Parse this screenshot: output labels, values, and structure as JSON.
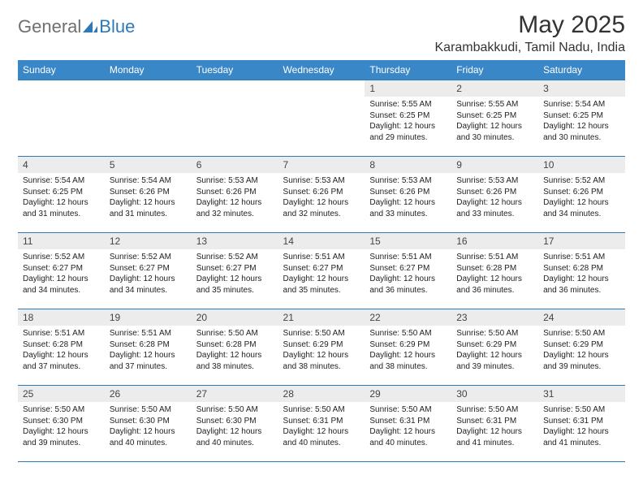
{
  "brand": {
    "general": "General",
    "blue": "Blue"
  },
  "title": "May 2025",
  "location": "Karambakkudi, Tamil Nadu, India",
  "colors": {
    "header_bg": "#3a87c7",
    "header_border": "#2f78b9",
    "daynum_bg": "#ececec",
    "text": "#222222"
  },
  "weekdays": [
    "Sunday",
    "Monday",
    "Tuesday",
    "Wednesday",
    "Thursday",
    "Friday",
    "Saturday"
  ],
  "weeks": [
    [
      {
        "n": "",
        "sr": "",
        "ss": "",
        "dl": ""
      },
      {
        "n": "",
        "sr": "",
        "ss": "",
        "dl": ""
      },
      {
        "n": "",
        "sr": "",
        "ss": "",
        "dl": ""
      },
      {
        "n": "",
        "sr": "",
        "ss": "",
        "dl": ""
      },
      {
        "n": "1",
        "sr": "Sunrise: 5:55 AM",
        "ss": "Sunset: 6:25 PM",
        "dl": "Daylight: 12 hours and 29 minutes."
      },
      {
        "n": "2",
        "sr": "Sunrise: 5:55 AM",
        "ss": "Sunset: 6:25 PM",
        "dl": "Daylight: 12 hours and 30 minutes."
      },
      {
        "n": "3",
        "sr": "Sunrise: 5:54 AM",
        "ss": "Sunset: 6:25 PM",
        "dl": "Daylight: 12 hours and 30 minutes."
      }
    ],
    [
      {
        "n": "4",
        "sr": "Sunrise: 5:54 AM",
        "ss": "Sunset: 6:25 PM",
        "dl": "Daylight: 12 hours and 31 minutes."
      },
      {
        "n": "5",
        "sr": "Sunrise: 5:54 AM",
        "ss": "Sunset: 6:26 PM",
        "dl": "Daylight: 12 hours and 31 minutes."
      },
      {
        "n": "6",
        "sr": "Sunrise: 5:53 AM",
        "ss": "Sunset: 6:26 PM",
        "dl": "Daylight: 12 hours and 32 minutes."
      },
      {
        "n": "7",
        "sr": "Sunrise: 5:53 AM",
        "ss": "Sunset: 6:26 PM",
        "dl": "Daylight: 12 hours and 32 minutes."
      },
      {
        "n": "8",
        "sr": "Sunrise: 5:53 AM",
        "ss": "Sunset: 6:26 PM",
        "dl": "Daylight: 12 hours and 33 minutes."
      },
      {
        "n": "9",
        "sr": "Sunrise: 5:53 AM",
        "ss": "Sunset: 6:26 PM",
        "dl": "Daylight: 12 hours and 33 minutes."
      },
      {
        "n": "10",
        "sr": "Sunrise: 5:52 AM",
        "ss": "Sunset: 6:26 PM",
        "dl": "Daylight: 12 hours and 34 minutes."
      }
    ],
    [
      {
        "n": "11",
        "sr": "Sunrise: 5:52 AM",
        "ss": "Sunset: 6:27 PM",
        "dl": "Daylight: 12 hours and 34 minutes."
      },
      {
        "n": "12",
        "sr": "Sunrise: 5:52 AM",
        "ss": "Sunset: 6:27 PM",
        "dl": "Daylight: 12 hours and 34 minutes."
      },
      {
        "n": "13",
        "sr": "Sunrise: 5:52 AM",
        "ss": "Sunset: 6:27 PM",
        "dl": "Daylight: 12 hours and 35 minutes."
      },
      {
        "n": "14",
        "sr": "Sunrise: 5:51 AM",
        "ss": "Sunset: 6:27 PM",
        "dl": "Daylight: 12 hours and 35 minutes."
      },
      {
        "n": "15",
        "sr": "Sunrise: 5:51 AM",
        "ss": "Sunset: 6:27 PM",
        "dl": "Daylight: 12 hours and 36 minutes."
      },
      {
        "n": "16",
        "sr": "Sunrise: 5:51 AM",
        "ss": "Sunset: 6:28 PM",
        "dl": "Daylight: 12 hours and 36 minutes."
      },
      {
        "n": "17",
        "sr": "Sunrise: 5:51 AM",
        "ss": "Sunset: 6:28 PM",
        "dl": "Daylight: 12 hours and 36 minutes."
      }
    ],
    [
      {
        "n": "18",
        "sr": "Sunrise: 5:51 AM",
        "ss": "Sunset: 6:28 PM",
        "dl": "Daylight: 12 hours and 37 minutes."
      },
      {
        "n": "19",
        "sr": "Sunrise: 5:51 AM",
        "ss": "Sunset: 6:28 PM",
        "dl": "Daylight: 12 hours and 37 minutes."
      },
      {
        "n": "20",
        "sr": "Sunrise: 5:50 AM",
        "ss": "Sunset: 6:28 PM",
        "dl": "Daylight: 12 hours and 38 minutes."
      },
      {
        "n": "21",
        "sr": "Sunrise: 5:50 AM",
        "ss": "Sunset: 6:29 PM",
        "dl": "Daylight: 12 hours and 38 minutes."
      },
      {
        "n": "22",
        "sr": "Sunrise: 5:50 AM",
        "ss": "Sunset: 6:29 PM",
        "dl": "Daylight: 12 hours and 38 minutes."
      },
      {
        "n": "23",
        "sr": "Sunrise: 5:50 AM",
        "ss": "Sunset: 6:29 PM",
        "dl": "Daylight: 12 hours and 39 minutes."
      },
      {
        "n": "24",
        "sr": "Sunrise: 5:50 AM",
        "ss": "Sunset: 6:29 PM",
        "dl": "Daylight: 12 hours and 39 minutes."
      }
    ],
    [
      {
        "n": "25",
        "sr": "Sunrise: 5:50 AM",
        "ss": "Sunset: 6:30 PM",
        "dl": "Daylight: 12 hours and 39 minutes."
      },
      {
        "n": "26",
        "sr": "Sunrise: 5:50 AM",
        "ss": "Sunset: 6:30 PM",
        "dl": "Daylight: 12 hours and 40 minutes."
      },
      {
        "n": "27",
        "sr": "Sunrise: 5:50 AM",
        "ss": "Sunset: 6:30 PM",
        "dl": "Daylight: 12 hours and 40 minutes."
      },
      {
        "n": "28",
        "sr": "Sunrise: 5:50 AM",
        "ss": "Sunset: 6:31 PM",
        "dl": "Daylight: 12 hours and 40 minutes."
      },
      {
        "n": "29",
        "sr": "Sunrise: 5:50 AM",
        "ss": "Sunset: 6:31 PM",
        "dl": "Daylight: 12 hours and 40 minutes."
      },
      {
        "n": "30",
        "sr": "Sunrise: 5:50 AM",
        "ss": "Sunset: 6:31 PM",
        "dl": "Daylight: 12 hours and 41 minutes."
      },
      {
        "n": "31",
        "sr": "Sunrise: 5:50 AM",
        "ss": "Sunset: 6:31 PM",
        "dl": "Daylight: 12 hours and 41 minutes."
      }
    ]
  ]
}
